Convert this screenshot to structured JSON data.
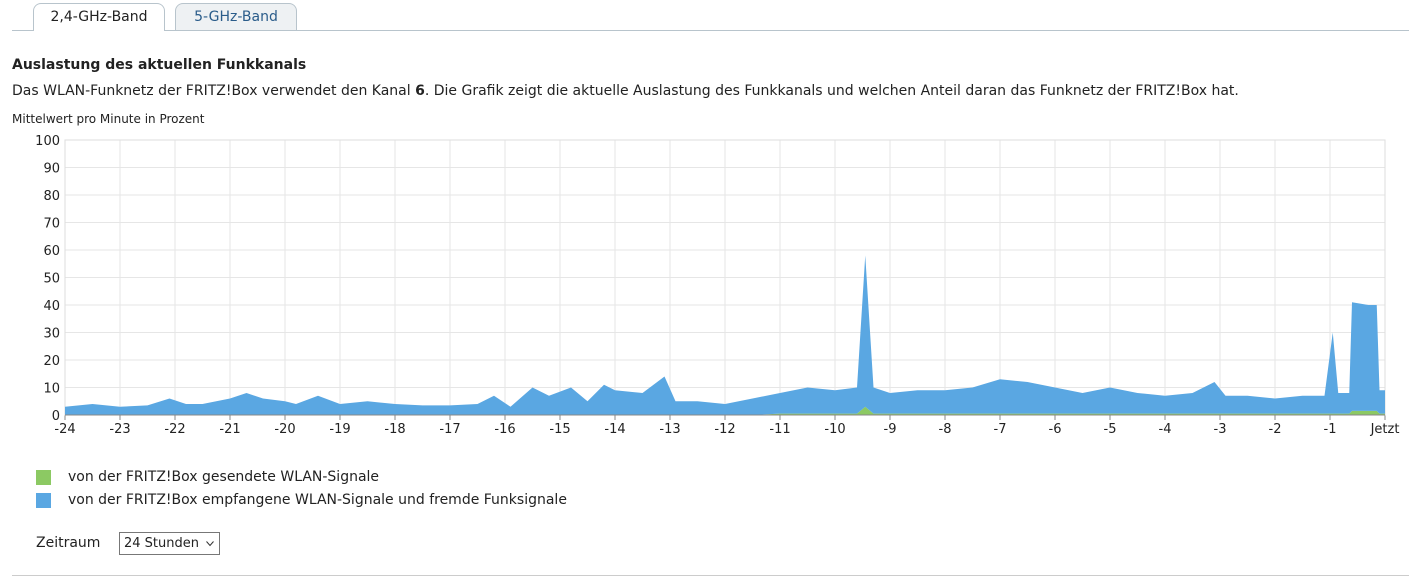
{
  "tabs": [
    "2,4-GHz-Band",
    "5-GHz-Band"
  ],
  "heading": "Auslastung des aktuellen Funkkanals",
  "description": {
    "before": "Das WLAN-Funknetz der FRITZ!Box verwendet den Kanal ",
    "channel": "6",
    "after": ". Die Grafik zeigt die aktuelle Auslastung des Funkkanals und welchen Anteil daran das Funknetz der FRITZ!Box hat."
  },
  "chart_data": {
    "type": "area",
    "stacked": true,
    "ylabel": "Mittelwert pro Minute in Prozent",
    "x": [
      -24,
      -23.5,
      -23,
      -22.5,
      -22.1,
      -21.8,
      -21.5,
      -21,
      -20.7,
      -20.4,
      -20,
      -19.8,
      -19.4,
      -19,
      -18.5,
      -18,
      -17.5,
      -17,
      -16.5,
      -16.2,
      -15.9,
      -15.5,
      -15.2,
      -14.8,
      -14.5,
      -14.2,
      -14,
      -13.5,
      -13.1,
      -12.9,
      -12.5,
      -12,
      -11.5,
      -11,
      -10.5,
      -10,
      -9.6,
      -9.45,
      -9.3,
      -9,
      -8.5,
      -8,
      -7.5,
      -7,
      -6.5,
      -6,
      -5.5,
      -5,
      -4.5,
      -4,
      -3.5,
      -3.1,
      -2.9,
      -2.5,
      -2,
      -1.5,
      -1.1,
      -0.95,
      -0.85,
      -0.65,
      -0.6,
      -0.3,
      -0.15,
      -0.1,
      0
    ],
    "series": [
      {
        "name": "von der FRITZ!Box gesendete WLAN-Signale",
        "color": "#8cc963",
        "values": [
          0,
          0,
          0,
          0,
          0,
          0,
          0,
          0,
          0,
          0,
          0,
          0,
          0,
          0,
          0,
          0,
          0,
          0,
          0,
          0,
          0,
          0,
          0,
          0,
          0,
          0,
          0,
          0,
          0,
          0,
          0,
          0,
          0,
          0.5,
          0.5,
          0.5,
          0.5,
          3,
          0.5,
          0.5,
          0.5,
          0.5,
          0.5,
          0.5,
          0.5,
          0.5,
          0.5,
          0.5,
          0.5,
          0.5,
          0.5,
          0.5,
          0.5,
          0.5,
          0.5,
          0.5,
          0.5,
          0.5,
          0.5,
          0.5,
          1.5,
          1.5,
          1.5,
          0.5,
          0.5
        ]
      },
      {
        "name": "von der FRITZ!Box empfangene WLAN-Signale und fremde Funksignale",
        "color": "#5aa7e2",
        "values": [
          3,
          4,
          3,
          3.5,
          6,
          4,
          4,
          6,
          8,
          6,
          5,
          4,
          7,
          4,
          5,
          4,
          3.5,
          3.5,
          4,
          7,
          3,
          10,
          7,
          10,
          5,
          11,
          9,
          8,
          14,
          5,
          5,
          4,
          6,
          7.5,
          9.5,
          8.5,
          9.5,
          55,
          9.5,
          7.5,
          8.5,
          8.5,
          9.5,
          12.5,
          11.5,
          9.5,
          7.5,
          9.5,
          7.5,
          6.5,
          7.5,
          11.5,
          6.5,
          6.5,
          5.5,
          6.5,
          6.5,
          29.5,
          7.5,
          7.5,
          39.5,
          38.5,
          38.5,
          8.5,
          8.5
        ]
      }
    ],
    "xlim": [
      -24,
      0
    ],
    "xticks": [
      -24,
      -23,
      -22,
      -21,
      -20,
      -19,
      -18,
      -17,
      -16,
      -15,
      -14,
      -13,
      -12,
      -11,
      -10,
      -9,
      -8,
      -7,
      -6,
      -5,
      -4,
      -3,
      -2,
      -1,
      {
        "value": 0,
        "label": "Jetzt"
      }
    ],
    "ylim": [
      0,
      100
    ],
    "yticks": [
      0,
      10,
      20,
      30,
      40,
      50,
      60,
      70,
      80,
      90,
      100
    ],
    "grid": true
  },
  "period": {
    "label": "Zeitraum",
    "selected": "24 Stunden"
  }
}
